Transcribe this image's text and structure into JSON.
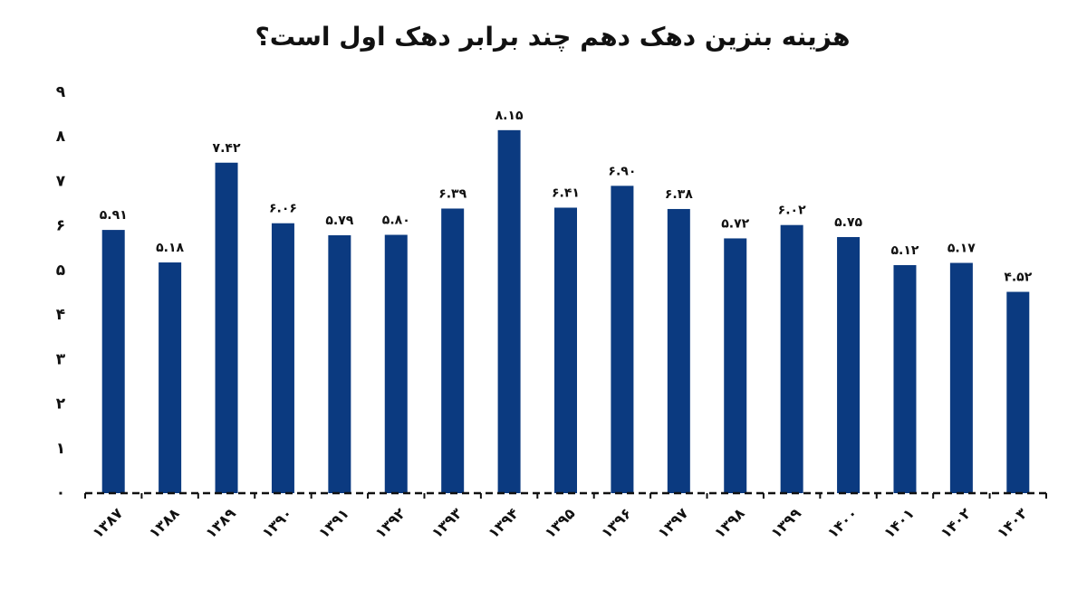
{
  "chart_data": {
    "type": "bar",
    "title": "هزینه بنزین دهک دهم چند برابر دهک اول است؟",
    "categories": [
      "۱۳۸۷",
      "۱۳۸۸",
      "۱۳۸۹",
      "۱۳۹۰",
      "۱۳۹۱",
      "۱۳۹۲",
      "۱۳۹۳",
      "۱۳۹۴",
      "۱۳۹۵",
      "۱۳۹۶",
      "۱۳۹۷",
      "۱۳۹۸",
      "۱۳۹۹",
      "۱۴۰۰",
      "۱۴۰۱",
      "۱۴۰۲",
      "۱۴۰۳"
    ],
    "values": [
      5.91,
      5.18,
      7.42,
      6.06,
      5.79,
      5.8,
      6.39,
      8.15,
      6.41,
      6.9,
      6.38,
      5.72,
      6.02,
      5.75,
      5.12,
      5.17,
      4.52
    ],
    "value_labels": [
      "۵.۹۱",
      "۵.۱۸",
      "۷.۴۲",
      "۶.۰۶",
      "۵.۷۹",
      "۵.۸۰",
      "۶.۳۹",
      "۸.۱۵",
      "۶.۴۱",
      "۶.۹۰",
      "۶.۳۸",
      "۵.۷۲",
      "۶.۰۲",
      "۵.۷۵",
      "۵.۱۲",
      "۵.۱۷",
      "۴.۵۲"
    ],
    "color": "#0b3a80",
    "ylim": [
      0,
      9
    ],
    "yticks": [
      {
        "value": 0,
        "label": "۰"
      },
      {
        "value": 1,
        "label": "۱"
      },
      {
        "value": 2,
        "label": "۲"
      },
      {
        "value": 3,
        "label": "۳"
      },
      {
        "value": 4,
        "label": "۴"
      },
      {
        "value": 5,
        "label": "۵"
      },
      {
        "value": 6,
        "label": "۶"
      },
      {
        "value": 7,
        "label": "۷"
      },
      {
        "value": 8,
        "label": "۸"
      },
      {
        "value": 9,
        "label": "۹"
      }
    ],
    "grid": false
  }
}
